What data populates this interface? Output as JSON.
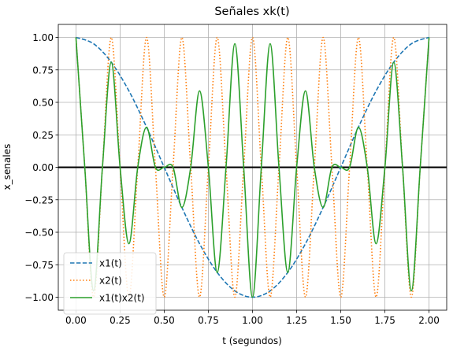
{
  "chart_data": {
    "type": "line",
    "title": "Señales xk(t)",
    "xlabel": "t (segundos)",
    "ylabel": "x_senales",
    "xlim": [
      -0.1,
      2.1
    ],
    "ylim": [
      -1.1,
      1.1
    ],
    "x_ticks": [
      0.0,
      0.25,
      0.5,
      0.75,
      1.0,
      1.25,
      1.5,
      1.75,
      2.0
    ],
    "x_tick_labels": [
      "0.00",
      "0.25",
      "0.50",
      "0.75",
      "1.00",
      "1.25",
      "1.50",
      "1.75",
      "2.00"
    ],
    "y_ticks": [
      -1.0,
      -0.75,
      -0.5,
      -0.25,
      0.0,
      0.25,
      0.5,
      0.75,
      1.0
    ],
    "y_tick_labels": [
      "−1.00",
      "−0.75",
      "−0.50",
      "−0.25",
      "0.00",
      "0.25",
      "0.50",
      "0.75",
      "1.00"
    ],
    "grid": true,
    "legend_position": "lower-left",
    "zero_line": 0.0,
    "series": [
      {
        "name": "x1(t)",
        "style": "dashed",
        "color": "#1f77b4",
        "x": [
          0.0,
          0.1,
          0.2,
          0.3,
          0.4,
          0.5,
          0.6,
          0.7,
          0.8,
          0.9,
          1.0,
          1.1,
          1.2,
          1.3,
          1.4,
          1.5,
          1.6,
          1.7,
          1.8,
          1.9,
          2.0
        ],
        "y": [
          1.0,
          0.951,
          0.809,
          0.588,
          0.309,
          0.0,
          -0.309,
          -0.588,
          -0.809,
          -0.951,
          -1.0,
          -0.951,
          -0.809,
          -0.588,
          -0.309,
          0.0,
          0.309,
          0.588,
          0.809,
          0.951,
          1.0
        ]
      },
      {
        "name": "x2(t)",
        "style": "dotted",
        "color": "#ff7f0e",
        "x": [
          0.0,
          0.05,
          0.1,
          0.15,
          0.2,
          0.25,
          0.3,
          0.35,
          0.4,
          0.45,
          0.5,
          0.55,
          0.6,
          0.65,
          0.7,
          0.75,
          0.8,
          0.85,
          0.9,
          0.95,
          1.0,
          1.05,
          1.1,
          1.15,
          1.2,
          1.25,
          1.3,
          1.35,
          1.4,
          1.45,
          1.5,
          1.55,
          1.6,
          1.65,
          1.7,
          1.75,
          1.8,
          1.85,
          1.9,
          1.95,
          2.0
        ],
        "y": [
          1.0,
          0.0,
          -1.0,
          0.0,
          1.0,
          0.0,
          -1.0,
          0.0,
          1.0,
          0.0,
          -1.0,
          0.0,
          1.0,
          0.0,
          -1.0,
          0.0,
          1.0,
          0.0,
          -1.0,
          0.0,
          1.0,
          0.0,
          -1.0,
          0.0,
          1.0,
          0.0,
          -1.0,
          0.0,
          1.0,
          0.0,
          -1.0,
          0.0,
          1.0,
          0.0,
          -1.0,
          0.0,
          1.0,
          0.0,
          -1.0,
          0.0,
          1.0
        ]
      },
      {
        "name": "x1(t)x2(t)",
        "style": "solid",
        "color": "#2ca02c",
        "x": [
          0.0,
          0.05,
          0.1,
          0.15,
          0.2,
          0.25,
          0.3,
          0.35,
          0.4,
          0.45,
          0.5,
          0.55,
          0.6,
          0.65,
          0.7,
          0.75,
          0.8,
          0.85,
          0.9,
          0.95,
          1.0,
          1.05,
          1.1,
          1.15,
          1.2,
          1.25,
          1.3,
          1.35,
          1.4,
          1.45,
          1.5,
          1.55,
          1.6,
          1.65,
          1.7,
          1.75,
          1.8,
          1.85,
          1.9,
          1.95,
          2.0
        ],
        "y": [
          1.0,
          0.0,
          -0.951,
          0.0,
          0.809,
          0.0,
          -0.588,
          0.0,
          0.309,
          0.0,
          0.0,
          0.0,
          -0.309,
          0.0,
          0.588,
          0.0,
          -0.809,
          0.0,
          0.951,
          0.0,
          -1.0,
          0.0,
          0.951,
          0.0,
          -0.809,
          0.0,
          0.588,
          0.0,
          -0.309,
          0.0,
          0.0,
          0.0,
          0.309,
          0.0,
          -0.588,
          0.0,
          0.809,
          0.0,
          -0.951,
          0.0,
          1.0
        ]
      }
    ]
  }
}
